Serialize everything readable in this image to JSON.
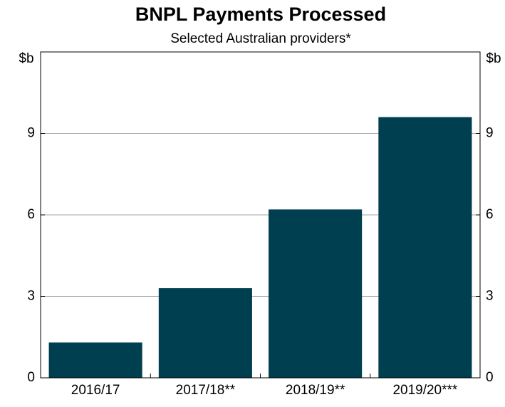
{
  "chart_data": {
    "type": "bar",
    "title": "BNPL Payments Processed",
    "subtitle": "Selected Australian providers*",
    "categories": [
      "2016/17",
      "2017/18**",
      "2018/19**",
      "2019/20***"
    ],
    "values": [
      1.3,
      3.3,
      6.2,
      9.6
    ],
    "color": "#003f4f",
    "y_label": "$b",
    "y2_label": "$b",
    "ylim": [
      0,
      12
    ],
    "yticks": [
      0,
      3,
      6,
      9
    ],
    "y2lim": [
      0,
      12
    ],
    "y2ticks": [
      0,
      3,
      6,
      9
    ],
    "grid": true
  }
}
